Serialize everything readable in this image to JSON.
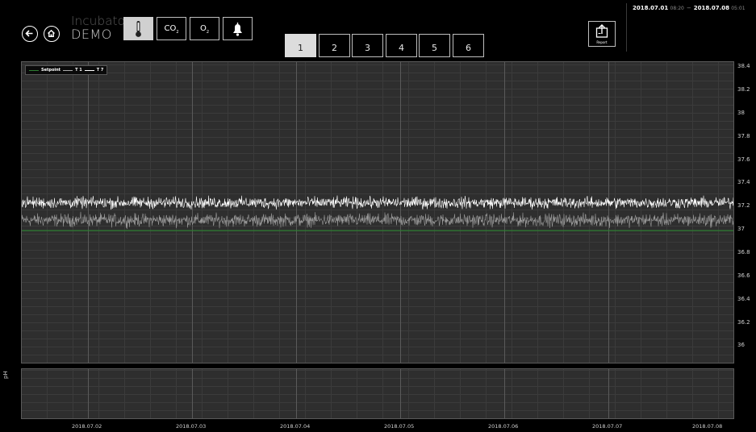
{
  "header": {
    "title": "Incubator",
    "device_name": "DEMO",
    "sensor_buttons": [
      {
        "name": "temperature",
        "label": "",
        "active": true
      },
      {
        "name": "co2",
        "label": "CO",
        "sub": "2"
      },
      {
        "name": "o2",
        "label": "O",
        "sub": "2"
      },
      {
        "name": "alarm",
        "label": ""
      }
    ],
    "tabs": [
      "1",
      "2",
      "3",
      "4",
      "5",
      "6"
    ],
    "active_tab": "1",
    "report_label": "Report",
    "range": {
      "from_date": "2018.07.01",
      "from_time": "08:20",
      "separator": "−",
      "to_date": "2018.07.08",
      "to_time": "05:01"
    }
  },
  "legend": [
    {
      "label": "Setpoint",
      "color": "#2e7d32"
    },
    {
      "label": "T 1",
      "color": "#aaaaaa"
    },
    {
      "label": "T 7",
      "color": "#ffffff"
    }
  ],
  "lower_panel_label": "pH",
  "chart_data": {
    "type": "line",
    "x_ticks": [
      "2018.07.02",
      "2018.07.03",
      "2018.07.04",
      "2018.07.05",
      "2018.07.06",
      "2018.07.07",
      "2018.07.08"
    ],
    "y_ticks": [
      "38.4",
      "38.2",
      "38",
      "37.8",
      "37.6",
      "37.4",
      "37.2",
      "37",
      "36.8",
      "36.6",
      "36.4",
      "36.2",
      "36"
    ],
    "ylim": [
      35.85,
      38.45
    ],
    "series": [
      {
        "name": "Setpoint",
        "color": "#2e7d32",
        "mean": 37.0,
        "noise": 0
      },
      {
        "name": "T 1",
        "color": "#9a9a9a",
        "mean": 37.09,
        "noise": 0.05
      },
      {
        "name": "T 7",
        "color": "#ffffff",
        "mean": 37.24,
        "noise": 0.045
      }
    ],
    "grid": true,
    "legend_position": "top-left"
  }
}
